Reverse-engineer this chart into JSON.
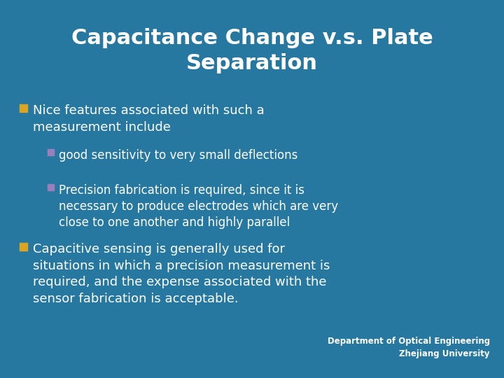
{
  "title_line1": "Capacitance Change v.s. Plate",
  "title_line2": "Separation",
  "background_color": "#2778A0",
  "title_color": "#FFFFFF",
  "text_color": "#FFFFFF",
  "bullet1_color": "#DAA520",
  "bullet2_color": "#9B7FBA",
  "title_fontsize": 22,
  "body_fontsize": 13,
  "sub_fontsize": 12,
  "footer_fontsize": 8.5,
  "bullet1_text": "Nice features associated with such a\nmeasurement include",
  "sub1_text": "good sensitivity to very small deflections",
  "sub2_text": "Precision fabrication is required, since it is\nnecessary to produce electrodes which are very\nclose to one another and highly parallel",
  "bullet2_text": "Capacitive sensing is generally used for\nsituations in which a precision measurement is\nrequired, and the expense associated with the\nsensor fabrication is acceptable.",
  "footer1": "Department of Optical Engineering",
  "footer2": "Zhejiang University"
}
